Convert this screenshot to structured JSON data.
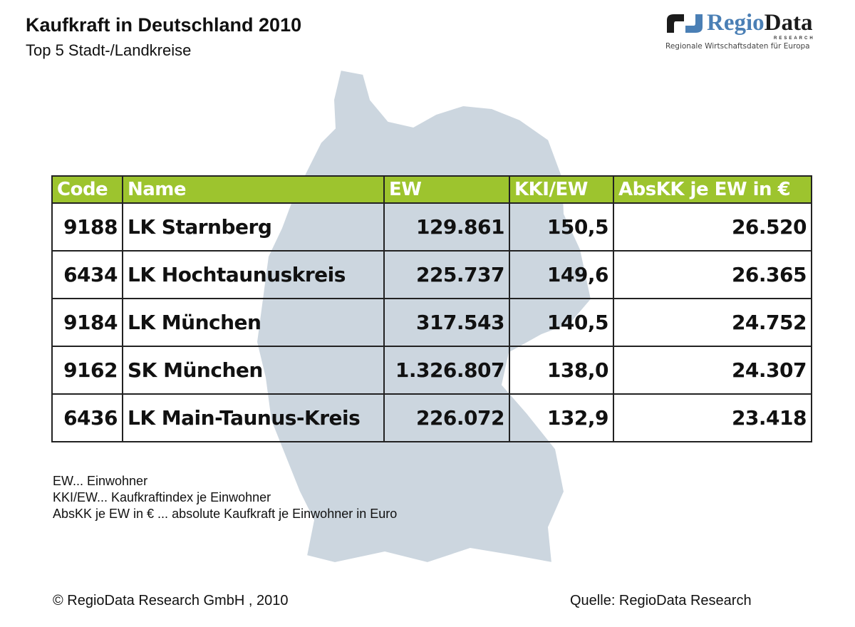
{
  "header": {
    "title": "Kaufkraft in Deutschland 2010",
    "subtitle": "Top 5 Stadt-/Landkreise"
  },
  "logo": {
    "brand_part1": "Regio",
    "brand_part2": "Data",
    "sub": "RESEARCH",
    "tagline": "Regionale Wirtschaftsdaten für Europa"
  },
  "colors": {
    "header_green": "#9dc42e",
    "map": "#ccd6df",
    "logo_blue": "#4a7fb5"
  },
  "table": {
    "columns": [
      "Code",
      "Name",
      "EW",
      "KKI/EW",
      "AbsKK je EW in €"
    ],
    "rows": [
      [
        "9188",
        "LK Starnberg",
        "129.861",
        "150,5",
        "26.520"
      ],
      [
        "6434",
        "LK Hochtaunuskreis",
        "225.737",
        "149,6",
        "26.365"
      ],
      [
        "9184",
        "LK München",
        "317.543",
        "140,5",
        "24.752"
      ],
      [
        "9162",
        "SK München",
        "1.326.807",
        "138,0",
        "24.307"
      ],
      [
        "6436",
        "LK Main-Taunus-Kreis",
        "226.072",
        "132,9",
        "23.418"
      ]
    ]
  },
  "legend": [
    "EW... Einwohner",
    "KKI/EW... Kaufkraftindex je Einwohner",
    "AbsKK je EW in € ... absolute Kaufkraft je Einwohner in Euro"
  ],
  "footer": {
    "copyright": "© RegioData Research GmbH  , 2010",
    "source": "Quelle: RegioData Research"
  }
}
